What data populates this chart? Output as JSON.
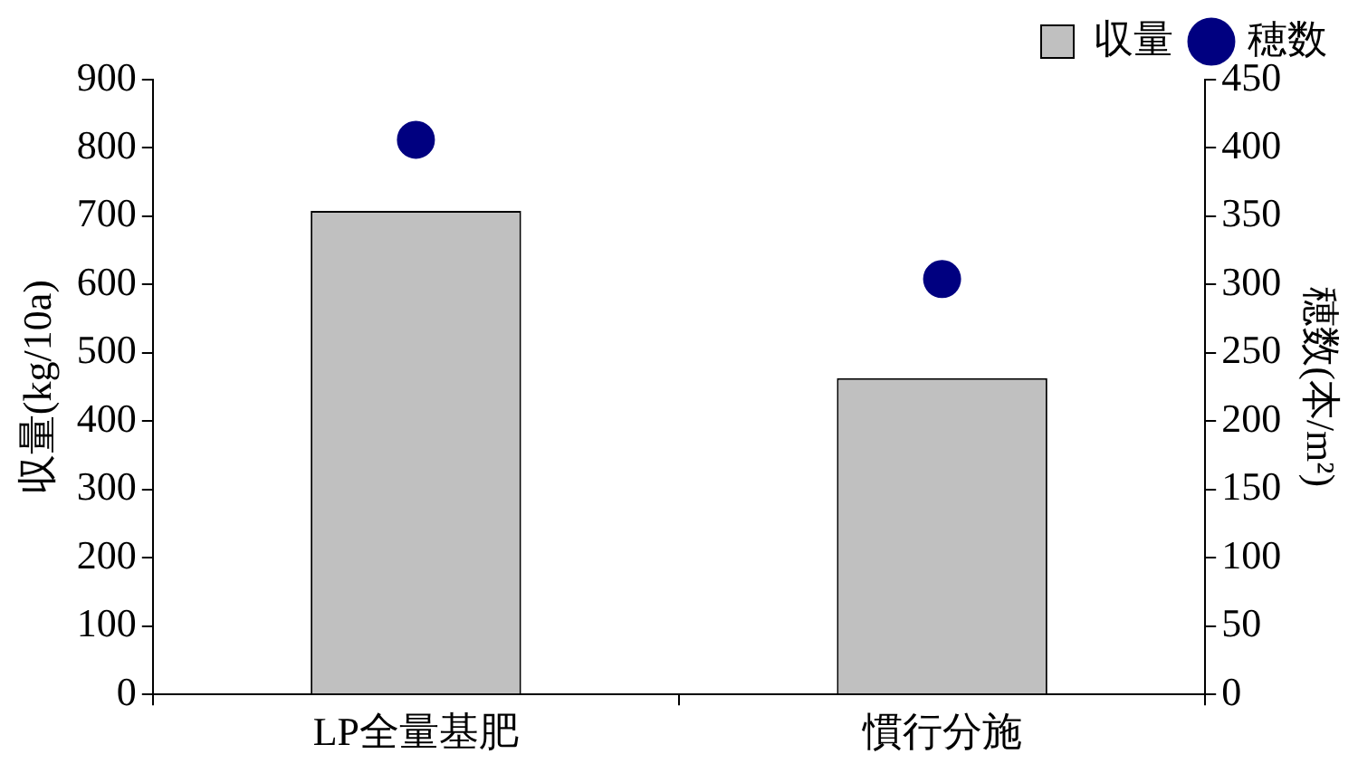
{
  "chart_data": {
    "type": "bar",
    "categories": [
      "LP全量基肥",
      "慣行分施"
    ],
    "series": [
      {
        "name": "収量",
        "color": "#c0c0c0",
        "values": [
          708,
          463
        ]
      },
      {
        "name": "穂数",
        "type": "scatter",
        "axis": "y2",
        "color": "#000080",
        "x": [
          "LP全量基肥",
          "慣行分施"
        ],
        "values": [
          406,
          304
        ]
      }
    ],
    "ylabel": "収量(kg/10a)",
    "y2label": "穂数(本/m²)",
    "ylim": [
      0,
      900
    ],
    "yticks": [
      0,
      100,
      200,
      300,
      400,
      500,
      600,
      700,
      800,
      900
    ],
    "y2lim": [
      0,
      450
    ],
    "y2ticks": [
      0,
      50,
      100,
      150,
      200,
      250,
      300,
      350,
      400,
      450
    ],
    "legend": "top right",
    "marker": "circle",
    "grid": false
  }
}
